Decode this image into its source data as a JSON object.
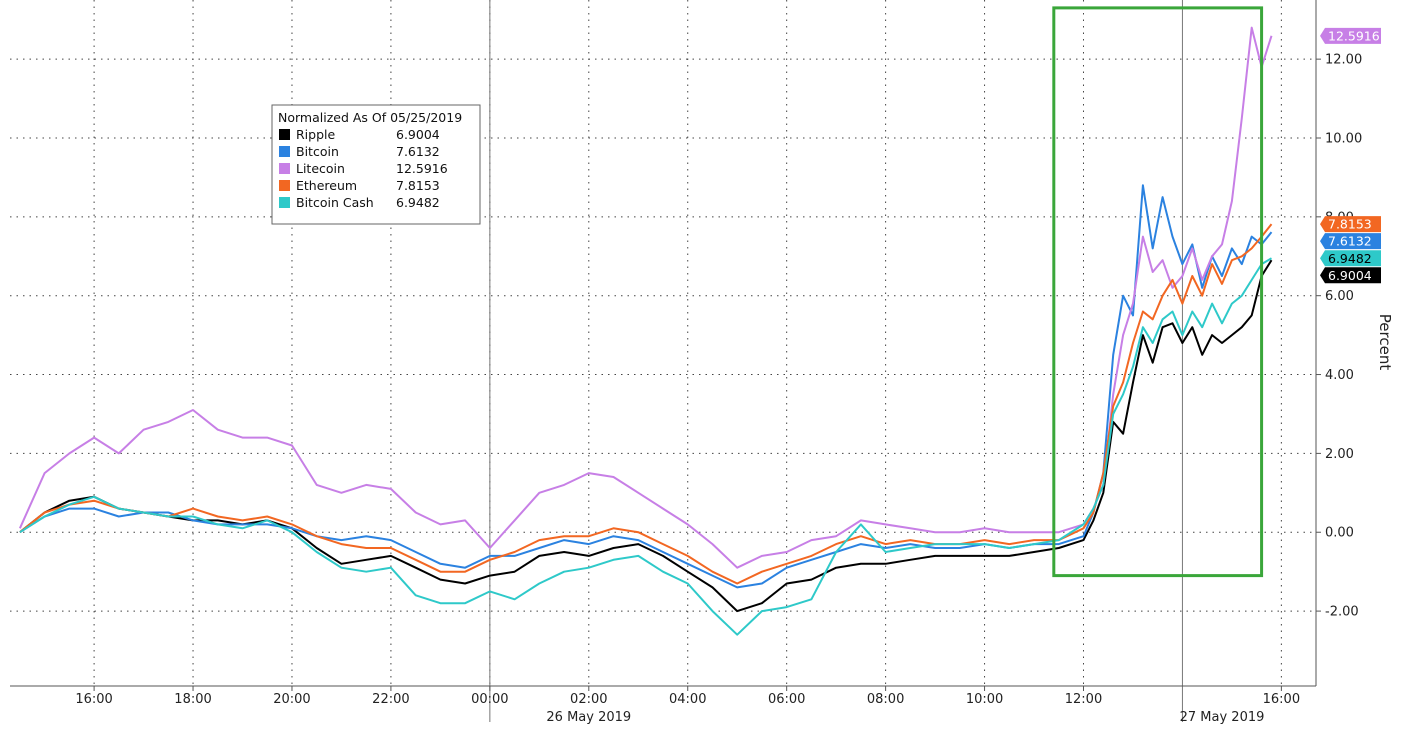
{
  "chart_data": {
    "type": "line",
    "legend": {
      "title": "Normalized As Of 05/25/2019",
      "position": "upper-left"
    },
    "series": [
      {
        "name": "Ripple",
        "last": "6.9004",
        "color": "#000000",
        "tag_text": "#ffffff"
      },
      {
        "name": "Bitcoin",
        "last": "7.6132",
        "color": "#2b82e0",
        "tag_text": "#ffffff"
      },
      {
        "name": "Litecoin",
        "last": "12.5916",
        "color": "#c77fe6",
        "tag_text": "#ffffff"
      },
      {
        "name": "Ethereum",
        "last": "7.8153",
        "color": "#f26722",
        "tag_text": "#ffffff"
      },
      {
        "name": "Bitcoin Cash",
        "last": "6.9482",
        "color": "#2ec9c9",
        "tag_text": "#000000"
      }
    ],
    "points": {
      "x_hours": [
        14.5,
        15,
        15.5,
        16,
        16.5,
        17,
        17.5,
        18,
        18.5,
        19,
        19.5,
        20,
        20.5,
        21,
        21.5,
        22,
        22.5,
        23,
        23.5,
        24,
        24.5,
        25,
        25.5,
        26,
        26.5,
        27,
        27.5,
        28,
        28.5,
        29,
        29.5,
        30,
        30.5,
        31,
        31.5,
        32,
        32.5,
        33,
        33.5,
        34,
        34.5,
        35,
        35.5,
        36,
        36.2,
        36.4,
        36.6,
        36.8,
        37,
        37.2,
        37.4,
        37.6,
        37.8,
        38,
        38.2,
        38.4,
        38.6,
        38.8,
        39,
        39.2,
        39.4,
        39.6,
        39.8
      ],
      "Ripple": [
        0.0,
        0.5,
        0.8,
        0.9,
        0.6,
        0.5,
        0.4,
        0.3,
        0.3,
        0.2,
        0.3,
        0.1,
        -0.4,
        -0.8,
        -0.7,
        -0.6,
        -0.9,
        -1.2,
        -1.3,
        -1.1,
        -1.0,
        -0.6,
        -0.5,
        -0.6,
        -0.4,
        -0.3,
        -0.6,
        -1.0,
        -1.4,
        -2.0,
        -1.8,
        -1.3,
        -1.2,
        -0.9,
        -0.8,
        -0.8,
        -0.7,
        -0.6,
        -0.6,
        -0.6,
        -0.6,
        -0.5,
        -0.4,
        -0.2,
        0.3,
        1.0,
        2.8,
        2.5,
        3.8,
        5.0,
        4.3,
        5.2,
        5.3,
        4.8,
        5.2,
        4.5,
        5.0,
        4.8,
        5.0,
        5.2,
        5.5,
        6.5,
        6.9004
      ],
      "Bitcoin": [
        0.0,
        0.4,
        0.6,
        0.6,
        0.4,
        0.5,
        0.5,
        0.3,
        0.2,
        0.2,
        0.2,
        0.1,
        -0.1,
        -0.2,
        -0.1,
        -0.2,
        -0.5,
        -0.8,
        -0.9,
        -0.6,
        -0.6,
        -0.4,
        -0.2,
        -0.3,
        -0.1,
        -0.2,
        -0.5,
        -0.8,
        -1.1,
        -1.4,
        -1.3,
        -0.9,
        -0.7,
        -0.5,
        -0.3,
        -0.4,
        -0.3,
        -0.4,
        -0.4,
        -0.3,
        -0.4,
        -0.3,
        -0.3,
        -0.1,
        0.5,
        1.5,
        4.5,
        6.0,
        5.5,
        8.8,
        7.2,
        8.5,
        7.5,
        6.8,
        7.3,
        6.2,
        7.0,
        6.5,
        7.2,
        6.8,
        7.5,
        7.3,
        7.6132
      ],
      "Litecoin": [
        0.1,
        1.5,
        2.0,
        2.4,
        2.0,
        2.6,
        2.8,
        3.1,
        2.6,
        2.4,
        2.4,
        2.2,
        1.2,
        1.0,
        1.2,
        1.1,
        0.5,
        0.2,
        0.3,
        -0.4,
        0.3,
        1.0,
        1.2,
        1.5,
        1.4,
        1.0,
        0.6,
        0.2,
        -0.3,
        -0.9,
        -0.6,
        -0.5,
        -0.2,
        -0.1,
        0.3,
        0.2,
        0.1,
        0.0,
        0.0,
        0.1,
        0.0,
        0.0,
        0.0,
        0.2,
        0.6,
        1.2,
        3.5,
        5.0,
        5.8,
        7.5,
        6.6,
        6.9,
        6.2,
        6.5,
        7.2,
        6.4,
        7.0,
        7.3,
        8.4,
        10.5,
        12.8,
        11.8,
        12.5916
      ],
      "Ethereum": [
        0.0,
        0.5,
        0.7,
        0.8,
        0.6,
        0.5,
        0.4,
        0.6,
        0.4,
        0.3,
        0.4,
        0.2,
        -0.1,
        -0.3,
        -0.4,
        -0.4,
        -0.7,
        -1.0,
        -1.0,
        -0.7,
        -0.5,
        -0.2,
        -0.1,
        -0.1,
        0.1,
        0.0,
        -0.3,
        -0.6,
        -1.0,
        -1.3,
        -1.0,
        -0.8,
        -0.6,
        -0.3,
        -0.1,
        -0.3,
        -0.2,
        -0.3,
        -0.3,
        -0.2,
        -0.3,
        -0.2,
        -0.2,
        0.1,
        0.5,
        1.5,
        3.2,
        3.8,
        4.8,
        5.6,
        5.4,
        6.0,
        6.4,
        5.8,
        6.5,
        6.0,
        6.8,
        6.3,
        6.9,
        7.0,
        7.2,
        7.5,
        7.8153
      ],
      "Bitcoin Cash": [
        0.0,
        0.4,
        0.7,
        0.9,
        0.6,
        0.5,
        0.4,
        0.4,
        0.2,
        0.1,
        0.3,
        0.0,
        -0.5,
        -0.9,
        -1.0,
        -0.9,
        -1.6,
        -1.8,
        -1.8,
        -1.5,
        -1.7,
        -1.3,
        -1.0,
        -0.9,
        -0.7,
        -0.6,
        -1.0,
        -1.3,
        -2.0,
        -2.6,
        -2.0,
        -1.9,
        -1.7,
        -0.5,
        0.2,
        -0.5,
        -0.4,
        -0.3,
        -0.3,
        -0.3,
        -0.4,
        -0.3,
        -0.2,
        0.2,
        0.6,
        1.2,
        3.0,
        3.5,
        4.2,
        5.2,
        4.8,
        5.4,
        5.6,
        5.0,
        5.6,
        5.2,
        5.8,
        5.3,
        5.8,
        6.0,
        6.4,
        6.8,
        6.9482
      ]
    },
    "x_ticks": [
      "16:00",
      "18:00",
      "20:00",
      "22:00",
      "00:00",
      "02:00",
      "04:00",
      "06:00",
      "08:00",
      "10:00",
      "12:00",
      "16:00"
    ],
    "x_tick_hours": [
      16,
      18,
      20,
      22,
      24,
      26,
      28,
      30,
      32,
      34,
      36,
      40
    ],
    "date_labels": [
      {
        "text": "26 May 2019",
        "hour": 26.0
      },
      {
        "text": "27 May 2019",
        "hour": 38.8
      }
    ],
    "day_boundaries": [
      24,
      38
    ],
    "x_range": [
      14.3,
      40.7
    ],
    "y_ticks": [
      "-2.00",
      "0.00",
      "2.00",
      "4.00",
      "6.00",
      "8.00",
      "10.00",
      "12.00"
    ],
    "y_tick_values": [
      -2,
      0,
      2,
      4,
      6,
      8,
      10,
      12
    ],
    "ylim": [
      -3.9,
      13.5
    ],
    "ylabel": "Percent",
    "grid": true,
    "highlight_box": {
      "x_start_hour": 35.4,
      "x_end_hour": 39.6,
      "y_top": 13.3,
      "y_bottom": -1.1,
      "color": "#3aa63a"
    }
  }
}
